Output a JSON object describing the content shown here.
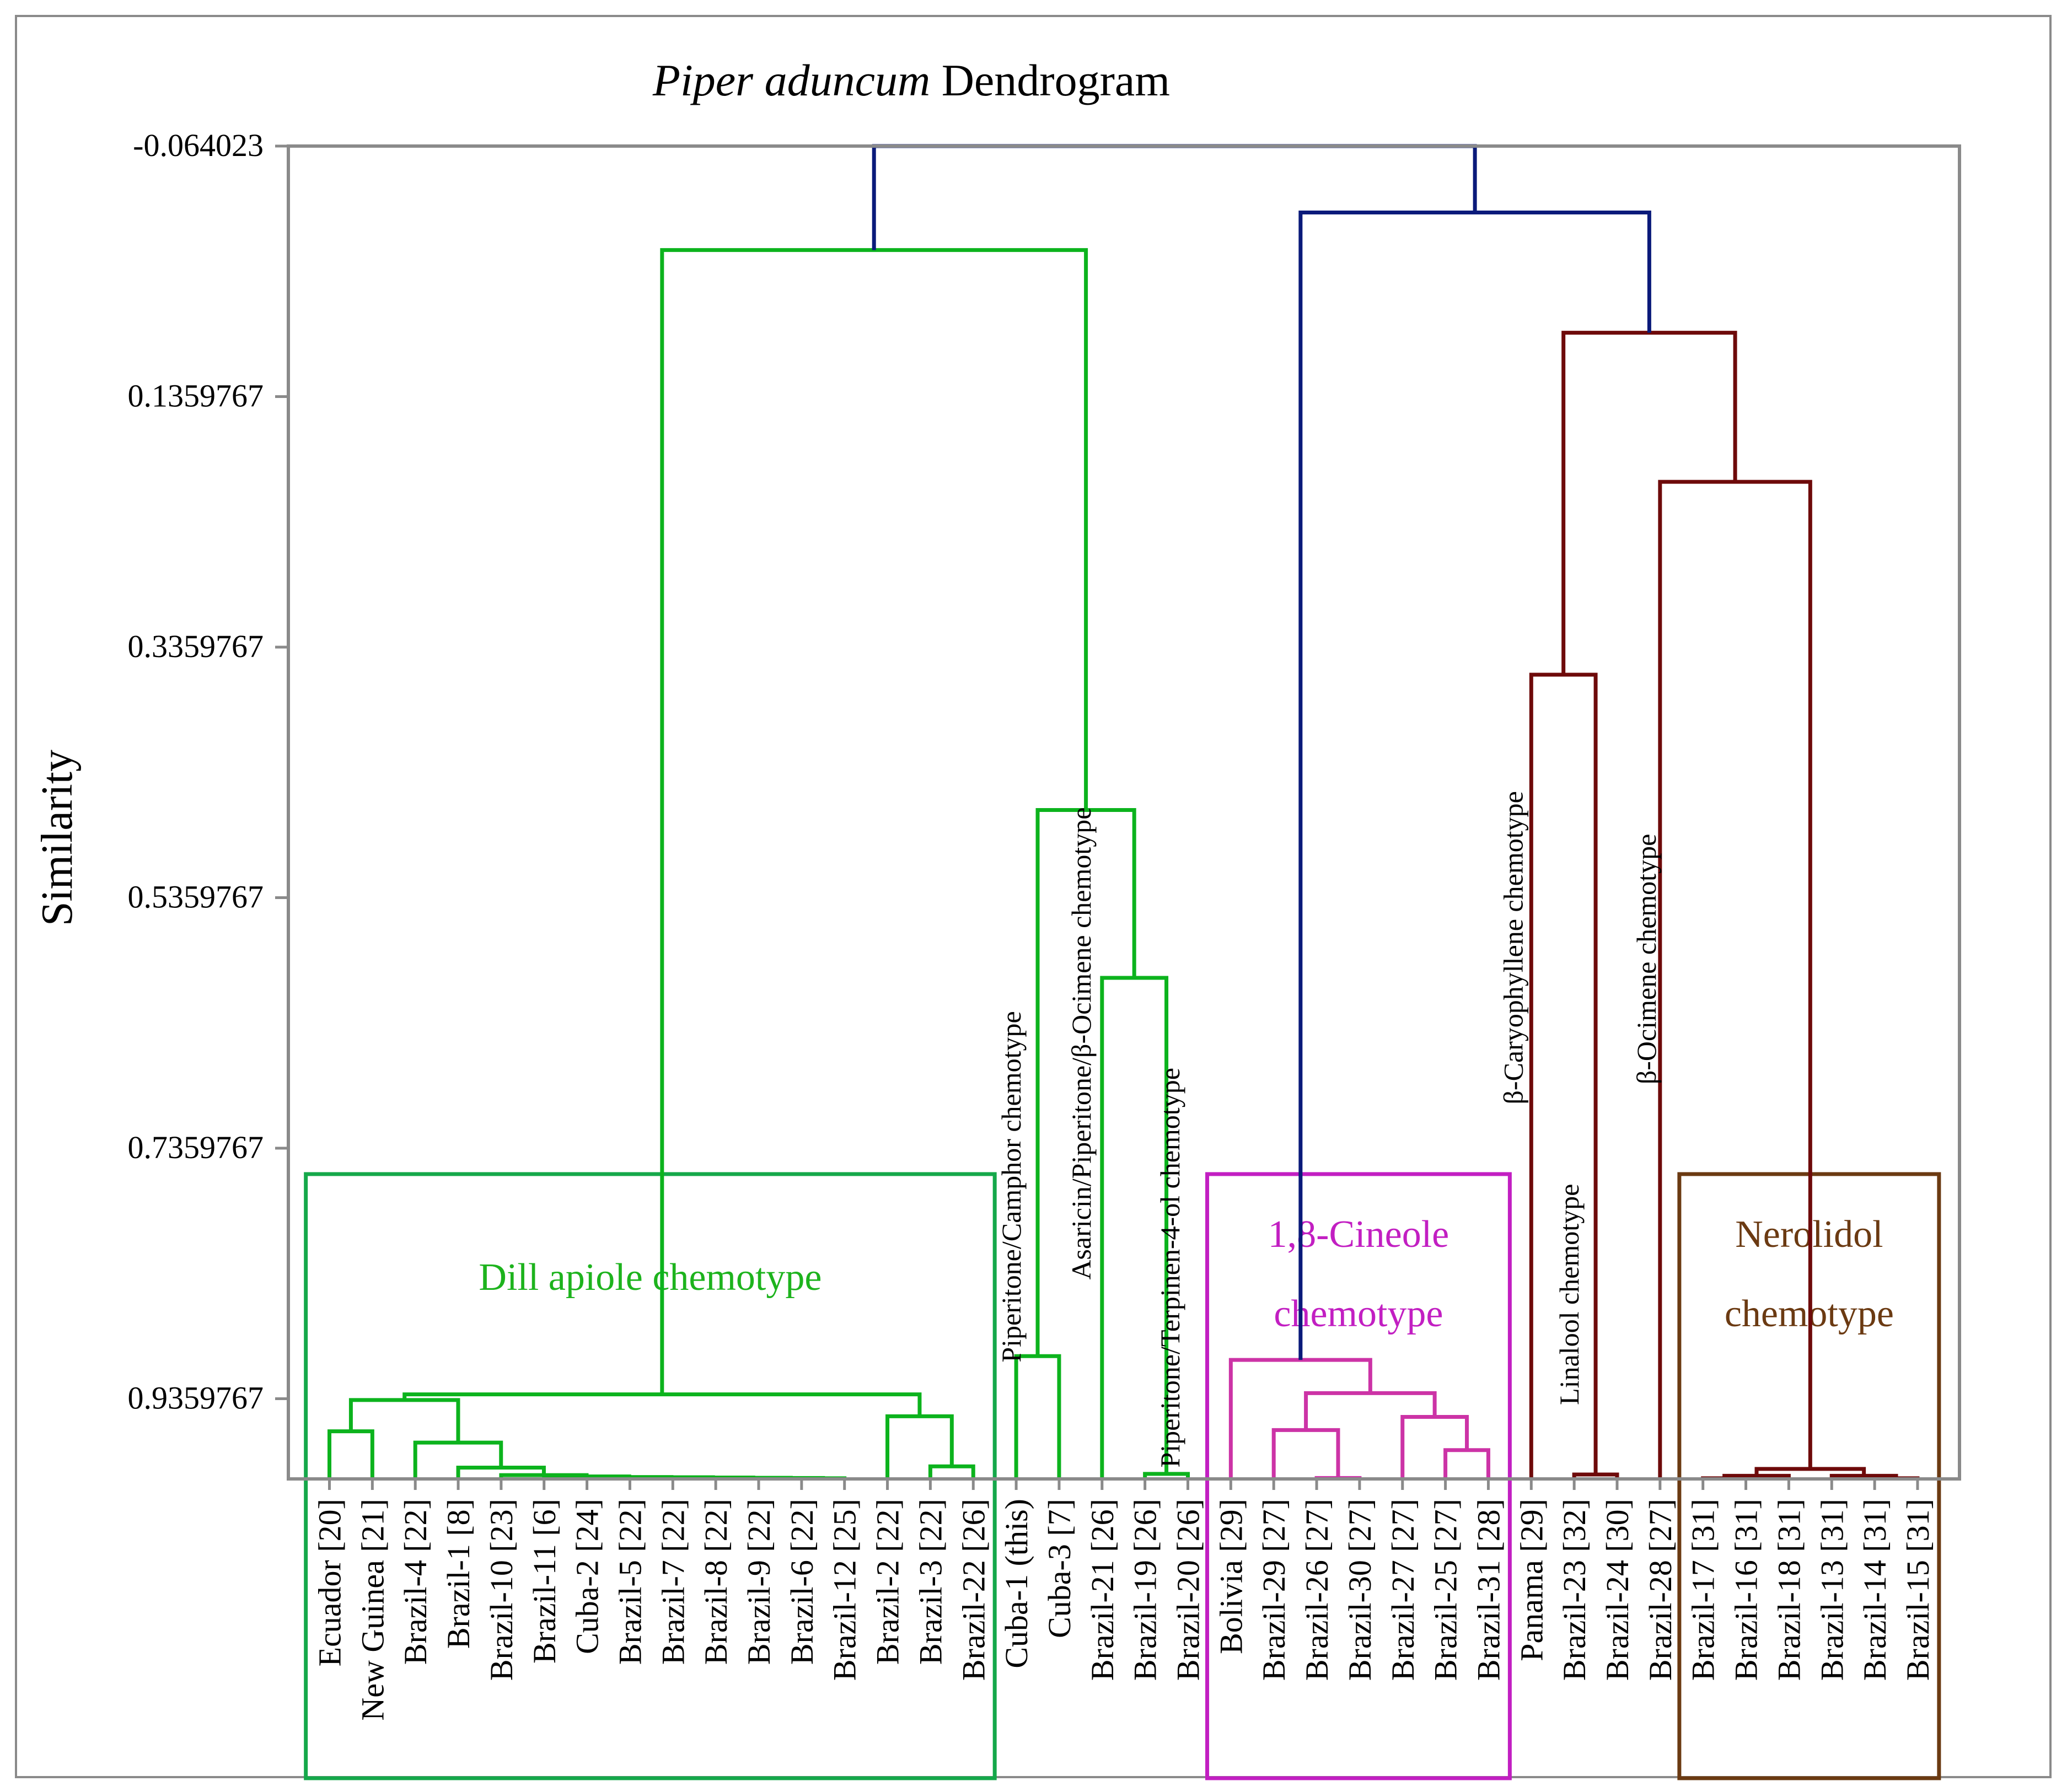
{
  "chart_data": {
    "type": "dendrogram",
    "title_italic": "Piper aduncum",
    "title_rest": " Dendrogram",
    "ylabel": "Similarity",
    "ylim": [
      -0.064023,
      1.0
    ],
    "yticks": [
      {
        "value": -0.064023,
        "label": "-0.064023"
      },
      {
        "value": 0.1359767,
        "label": "0.1359767"
      },
      {
        "value": 0.3359767,
        "label": "0.3359767"
      },
      {
        "value": 0.5359767,
        "label": "0.5359767"
      },
      {
        "value": 0.7359767,
        "label": "0.7359767"
      },
      {
        "value": 0.9359767,
        "label": "0.9359767"
      }
    ],
    "leaves": [
      "Ecuador [20]",
      "New Guinea [21]",
      "Brazil-4 [22]",
      "Brazil-1 [8]",
      "Brazil-10 [23]",
      "Brazil-11 [6]",
      "Cuba-2 [24]",
      "Brazil-5 [22]",
      "Brazil-7 [22]",
      "Brazil-8 [22]",
      "Brazil-9 [22]",
      "Brazil-6 [22]",
      "Brazil-12 [25]",
      "Brazil-2 [22]",
      "Brazil-3 [22]",
      "Brazil-22 [26]",
      "Cuba-1 (this)",
      "Cuba-3 [7]",
      "Brazil-21 [26]",
      "Brazil-19 [26]",
      "Brazil-20 [26]",
      "Bolivia [29]",
      "Brazil-29 [27]",
      "Brazil-26 [27]",
      "Brazil-30 [27]",
      "Brazil-27 [27]",
      "Brazil-25 [27]",
      "Brazil-31 [28]",
      "Panama [29]",
      "Brazil-23 [32]",
      "Brazil-24 [30]",
      "Brazil-28 [27]",
      "Brazil-17 [31]",
      "Brazil-16 [31]",
      "Brazil-18 [31]",
      "Brazil-13 [31]",
      "Brazil-14 [31]",
      "Brazil-15 [31]"
    ],
    "merges": [
      {
        "l": 11,
        "r": 12,
        "h": 0.9995,
        "c": "green"
      },
      {
        "l": 10,
        "r": 38,
        "h": 0.9993,
        "c": "green"
      },
      {
        "l": 9,
        "r": 39,
        "h": 0.9991,
        "c": "green"
      },
      {
        "l": 8,
        "r": 40,
        "h": 0.9989,
        "c": "green"
      },
      {
        "l": 7,
        "r": 41,
        "h": 0.9987,
        "c": "green"
      },
      {
        "l": 6,
        "r": 42,
        "h": 0.9985,
        "c": "green"
      },
      {
        "l": 5,
        "r": 43,
        "h": 0.998,
        "c": "green"
      },
      {
        "l": 4,
        "r": 44,
        "h": 0.997,
        "c": "green"
      },
      {
        "l": 3,
        "r": 45,
        "h": 0.991,
        "c": "green"
      },
      {
        "l": 2,
        "r": 46,
        "h": 0.971,
        "c": "green"
      },
      {
        "l": 0,
        "r": 1,
        "h": 0.962,
        "c": "green"
      },
      {
        "l": 48,
        "r": 47,
        "h": 0.937,
        "c": "green"
      },
      {
        "l": 14,
        "r": 15,
        "h": 0.99,
        "c": "green"
      },
      {
        "l": 13,
        "r": 50,
        "h": 0.95,
        "c": "green"
      },
      {
        "l": 49,
        "r": 51,
        "h": 0.9325,
        "c": "green"
      },
      {
        "l": 16,
        "r": 17,
        "h": 0.902,
        "c": "green"
      },
      {
        "l": 19,
        "r": 20,
        "h": 0.996,
        "c": "green"
      },
      {
        "l": 18,
        "r": 54,
        "h": 0.6,
        "c": "green"
      },
      {
        "l": 53,
        "r": 55,
        "h": 0.466,
        "c": "green"
      },
      {
        "l": 52,
        "r": 56,
        "h": 0.019,
        "c": "green"
      },
      {
        "l": 23,
        "r": 24,
        "h": 0.9993,
        "c": "magenta"
      },
      {
        "l": 22,
        "r": 58,
        "h": 0.961,
        "c": "magenta"
      },
      {
        "l": 26,
        "r": 27,
        "h": 0.977,
        "c": "magenta"
      },
      {
        "l": 25,
        "r": 60,
        "h": 0.9505,
        "c": "magenta"
      },
      {
        "l": 59,
        "r": 61,
        "h": 0.9315,
        "c": "magenta"
      },
      {
        "l": 21,
        "r": 62,
        "h": 0.905,
        "c": "magenta"
      },
      {
        "l": 29,
        "r": 30,
        "h": 0.9965,
        "c": "maroon"
      },
      {
        "l": 28,
        "r": 64,
        "h": 0.358,
        "c": "maroon"
      },
      {
        "l": 32,
        "r": 33,
        "h": 0.9995,
        "c": "maroon"
      },
      {
        "l": 36,
        "r": 37,
        "h": 0.9995,
        "c": "maroon"
      },
      {
        "l": 35,
        "r": 67,
        "h": 0.9975,
        "c": "maroon"
      },
      {
        "l": 66,
        "r": 34,
        "h": 0.9975,
        "c": "maroon"
      },
      {
        "l": 69,
        "r": 68,
        "h": 0.992,
        "c": "maroon"
      },
      {
        "l": 31,
        "r": 70,
        "h": 0.204,
        "c": "maroon"
      },
      {
        "l": 65,
        "r": 71,
        "h": 0.085,
        "c": "maroon"
      },
      {
        "l": 63,
        "r": 72,
        "h": -0.011,
        "c": "blue"
      },
      {
        "l": 57,
        "r": 73,
        "h": -0.064,
        "c": "blue"
      }
    ],
    "line_colors": {
      "green": "#0cb31d",
      "magenta": "#cc33a6",
      "maroon": "#6e0a0a",
      "blue": "#0a1a7a"
    },
    "annotations": [
      {
        "text": "Piperitone/Camphor chemotype",
        "anchor_leaf": 16,
        "dx": 0.1,
        "y": 0.907,
        "color": "#000000"
      },
      {
        "text": "Asaricin/Piperitone/β-Ocimene chemotype",
        "anchor_leaf": 18,
        "dx": -0.27,
        "y": 0.841,
        "color": "#000000"
      },
      {
        "text": "Piperitone/Terpinen-4-ol chemotype",
        "anchor_leaf": 20,
        "dx": -0.2,
        "y": 0.991,
        "color": "#000000"
      },
      {
        "text": "β-Caryophyllene chemotype",
        "anchor_leaf": 28,
        "dx": -0.2,
        "y": 0.701,
        "color": "#000000"
      },
      {
        "text": "Linalool chemotype",
        "anchor_leaf": 29,
        "dx": 0.1,
        "y": 0.941,
        "color": "#000000"
      },
      {
        "text": "β-Ocimene chemotype",
        "anchor_leaf": 31,
        "dx": -0.1,
        "y": 0.685,
        "color": "#000000"
      }
    ],
    "groups": [
      {
        "lines": [
          "Dill apiole chemotype"
        ],
        "first_leaf": 0,
        "last_leaf": 15,
        "box_color": "#15a84a",
        "text_color": "#1db31d"
      },
      {
        "lines": [
          "1,8-Cineole",
          "chemotype"
        ],
        "first_leaf": 21,
        "last_leaf": 27,
        "box_color": "#c21fc2",
        "text_color": "#c21fc2"
      },
      {
        "lines": [
          "Nerolidol",
          "chemotype"
        ],
        "first_leaf": 32,
        "last_leaf": 37,
        "box_color": "#6b3a12",
        "text_color": "#6b3a12"
      }
    ]
  }
}
